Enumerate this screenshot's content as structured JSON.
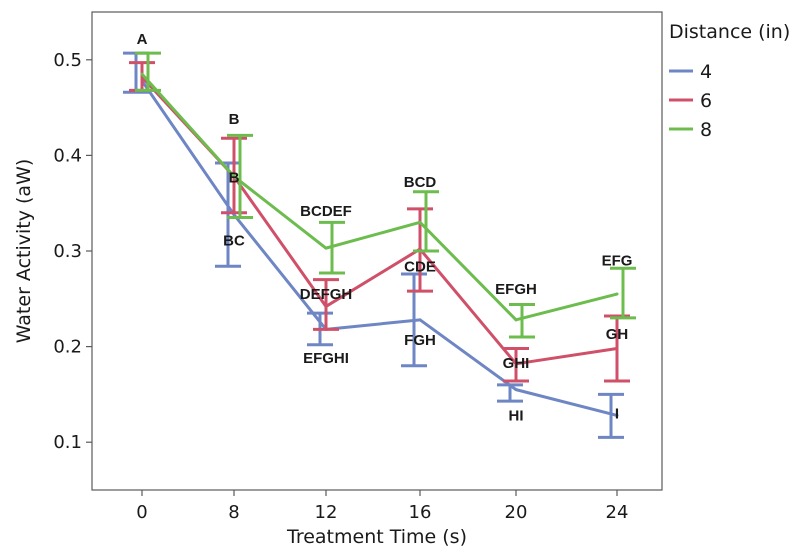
{
  "chart_data": {
    "type": "line",
    "xlabel": "Treatment Time (s)",
    "ylabel": "Water Activity (aW)",
    "categories": [
      "0",
      "8",
      "12",
      "16",
      "20",
      "24"
    ],
    "ylim": [
      0.05,
      0.55
    ],
    "yticks": [
      0.1,
      0.2,
      0.3,
      0.4,
      0.5
    ],
    "yticklabels": [
      "0.1",
      "0.2",
      "0.3",
      "0.4",
      "0.5"
    ],
    "grid": false,
    "legend": {
      "title": "Distance (in)",
      "position": "right"
    },
    "series": [
      {
        "name": "4",
        "color": "#6e86c4",
        "values": [
          0.478,
          0.338,
          0.218,
          0.228,
          0.155,
          0.128
        ],
        "err_low": [
          0.466,
          0.284,
          0.202,
          0.18,
          0.143,
          0.105
        ],
        "err_high": [
          0.507,
          0.392,
          0.235,
          0.276,
          0.16,
          0.15
        ]
      },
      {
        "name": "6",
        "color": "#cf5068",
        "values": [
          0.482,
          0.378,
          0.242,
          0.302,
          0.182,
          0.198
        ],
        "err_low": [
          0.468,
          0.34,
          0.218,
          0.258,
          0.164,
          0.164
        ],
        "err_high": [
          0.497,
          0.418,
          0.27,
          0.344,
          0.198,
          0.232
        ]
      },
      {
        "name": "8",
        "color": "#6cbc4e",
        "values": [
          0.485,
          0.378,
          0.303,
          0.33,
          0.228,
          0.255
        ],
        "err_low": [
          0.468,
          0.335,
          0.277,
          0.3,
          0.21,
          0.23
        ],
        "err_high": [
          0.507,
          0.421,
          0.33,
          0.362,
          0.244,
          0.282
        ]
      }
    ],
    "annotations": [
      {
        "text": "A",
        "x": "0",
        "y": 0.522
      },
      {
        "text": "B",
        "x": "8",
        "y": 0.438
      },
      {
        "text": "B",
        "x": "8",
        "y": 0.377
      },
      {
        "text": "BC",
        "x": "8",
        "y": 0.311
      },
      {
        "text": "BCDEF",
        "x": "12",
        "y": 0.342
      },
      {
        "text": "DEFGH",
        "x": "12",
        "y": 0.255
      },
      {
        "text": "EFGHI",
        "x": "12",
        "y": 0.188
      },
      {
        "text": "BCD",
        "x": "16",
        "y": 0.372
      },
      {
        "text": "CDE",
        "x": "16",
        "y": 0.284
      },
      {
        "text": "FGH",
        "x": "16",
        "y": 0.207
      },
      {
        "text": "EFGH",
        "x": "20",
        "y": 0.26
      },
      {
        "text": "GHI",
        "x": "20",
        "y": 0.183
      },
      {
        "text": "HI",
        "x": "20",
        "y": 0.128
      },
      {
        "text": "EFG",
        "x": "24",
        "y": 0.29
      },
      {
        "text": "GH",
        "x": "24",
        "y": 0.213
      },
      {
        "text": "I",
        "x": "24",
        "y": 0.13
      }
    ]
  }
}
